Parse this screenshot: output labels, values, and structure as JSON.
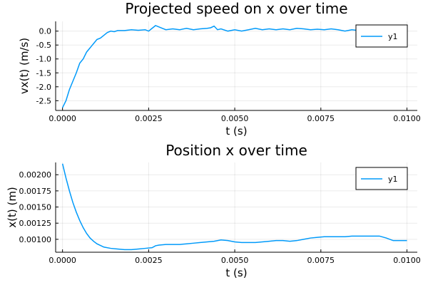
{
  "chart_data": [
    {
      "type": "line",
      "title": "Projected speed on x over time",
      "xlabel": "t (s)",
      "ylabel": "vx(t) (m/s)",
      "xlim": [
        -0.0002,
        0.0103
      ],
      "ylim": [
        -2.85,
        0.35
      ],
      "xticks": [
        0.0,
        0.0025,
        0.005,
        0.0075,
        0.01
      ],
      "xtick_labels": [
        "0.0000",
        "0.0025",
        "0.0050",
        "0.0075",
        "0.0100"
      ],
      "yticks": [
        -2.5,
        -2.0,
        -1.5,
        -1.0,
        -0.5,
        0.0
      ],
      "ytick_labels": [
        "-2.5",
        "-2.0",
        "-1.5",
        "-1.0",
        "-0.5",
        "0.0"
      ],
      "grid": true,
      "legend": "top-right",
      "series": [
        {
          "name": "y1",
          "color": "#009AFA",
          "x": [
            0.0,
            0.0001,
            0.0002,
            0.0003,
            0.0004,
            0.0005,
            0.0006,
            0.0007,
            0.0008,
            0.0009,
            0.001,
            0.0011,
            0.0012,
            0.0013,
            0.0014,
            0.0015,
            0.0016,
            0.0018,
            0.002,
            0.0022,
            0.0024,
            0.0025,
            0.0026,
            0.0027,
            0.0028,
            0.0029,
            0.003,
            0.0032,
            0.0034,
            0.0036,
            0.0038,
            0.004,
            0.0042,
            0.0043,
            0.0044,
            0.0045,
            0.0046,
            0.0048,
            0.005,
            0.0052,
            0.0054,
            0.0056,
            0.0058,
            0.006,
            0.0062,
            0.0064,
            0.0066,
            0.0068,
            0.007,
            0.0072,
            0.0074,
            0.0076,
            0.0078,
            0.008,
            0.0082,
            0.0084,
            0.0086,
            0.0088,
            0.009,
            0.0092,
            0.0094,
            0.0096,
            0.0098,
            0.01
          ],
          "y": [
            -2.75,
            -2.5,
            -2.1,
            -1.8,
            -1.5,
            -1.15,
            -1.0,
            -0.75,
            -0.6,
            -0.45,
            -0.3,
            -0.25,
            -0.15,
            -0.05,
            0.0,
            -0.02,
            0.02,
            0.02,
            0.05,
            0.03,
            0.05,
            0.0,
            0.1,
            0.2,
            0.15,
            0.1,
            0.05,
            0.08,
            0.05,
            0.1,
            0.05,
            0.08,
            0.1,
            0.12,
            0.18,
            0.05,
            0.08,
            0.0,
            0.05,
            0.0,
            0.05,
            0.1,
            0.05,
            0.08,
            0.05,
            0.08,
            0.05,
            0.1,
            0.08,
            0.05,
            0.07,
            0.05,
            0.08,
            0.05,
            0.0,
            0.05,
            0.02,
            0.05,
            0.0,
            0.05,
            0.03,
            0.0,
            0.02,
            0.0
          ]
        }
      ]
    },
    {
      "type": "line",
      "title": "Position x over time",
      "xlabel": "t (s)",
      "ylabel": "x(t) (m)",
      "xlim": [
        -0.0002,
        0.0103
      ],
      "ylim": [
        0.0008,
        0.00219
      ],
      "xticks": [
        0.0,
        0.0025,
        0.005,
        0.0075,
        0.01
      ],
      "xtick_labels": [
        "0.0000",
        "0.0025",
        "0.0050",
        "0.0075",
        "0.0100"
      ],
      "yticks": [
        0.001,
        0.00125,
        0.0015,
        0.00175,
        0.002
      ],
      "ytick_labels": [
        "0.00100",
        "0.00125",
        "0.00150",
        "0.00175",
        "0.00200"
      ],
      "grid": true,
      "legend": "top-right",
      "series": [
        {
          "name": "y1",
          "color": "#009AFA",
          "x": [
            0.0,
            0.0001,
            0.0002,
            0.0003,
            0.0004,
            0.0005,
            0.0006,
            0.0007,
            0.0008,
            0.0009,
            0.001,
            0.0012,
            0.0014,
            0.0016,
            0.0018,
            0.002,
            0.0022,
            0.0024,
            0.0026,
            0.0027,
            0.0028,
            0.003,
            0.0032,
            0.0034,
            0.0036,
            0.0038,
            0.004,
            0.0042,
            0.0044,
            0.0046,
            0.0048,
            0.005,
            0.0052,
            0.0054,
            0.0056,
            0.0058,
            0.006,
            0.0062,
            0.0064,
            0.0066,
            0.0068,
            0.007,
            0.0072,
            0.0074,
            0.0076,
            0.0078,
            0.008,
            0.0082,
            0.0084,
            0.0086,
            0.0088,
            0.009,
            0.0092,
            0.0094,
            0.0096,
            0.0098,
            0.01
          ],
          "y": [
            0.00217,
            0.00195,
            0.00175,
            0.00157,
            0.00142,
            0.00129,
            0.00118,
            0.00109,
            0.00102,
            0.00097,
            0.00093,
            0.00088,
            0.00086,
            0.00085,
            0.00084,
            0.00084,
            0.00085,
            0.00086,
            0.00087,
            0.0009,
            0.00091,
            0.00092,
            0.00092,
            0.00092,
            0.00093,
            0.00094,
            0.00095,
            0.00096,
            0.00097,
            0.00099,
            0.00098,
            0.00096,
            0.00095,
            0.00095,
            0.00095,
            0.00096,
            0.00097,
            0.00098,
            0.00098,
            0.00097,
            0.00098,
            0.001,
            0.00102,
            0.00103,
            0.00104,
            0.00104,
            0.00104,
            0.00104,
            0.00105,
            0.00105,
            0.00105,
            0.00105,
            0.00105,
            0.00102,
            0.00098,
            0.00098,
            0.00098
          ]
        }
      ]
    }
  ]
}
